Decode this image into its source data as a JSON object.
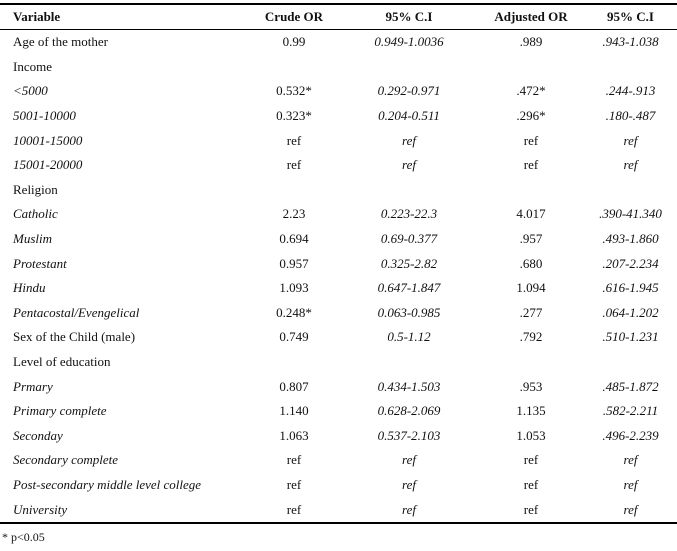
{
  "table": {
    "headers": [
      "Variable",
      "Crude OR",
      "95% C.I",
      "Adjusted OR",
      "95% C.I"
    ],
    "rows": [
      {
        "label": "Age of the mother",
        "italic": false,
        "values": [
          "0.99",
          "0.949-1.0036",
          ".989",
          ".943-1.038"
        ]
      },
      {
        "label": "Income",
        "italic": false,
        "values": [
          "",
          "",
          "",
          ""
        ]
      },
      {
        "label": "<5000",
        "italic": true,
        "values": [
          "0.532*",
          "0.292-0.971",
          ".472*",
          ".244-.913"
        ]
      },
      {
        "label": "5001-10000",
        "italic": true,
        "values": [
          "0.323*",
          "0.204-0.511",
          ".296*",
          ".180-.487"
        ]
      },
      {
        "label": "10001-15000",
        "italic": true,
        "values": [
          "ref",
          "ref",
          "ref",
          "ref"
        ]
      },
      {
        "label": "15001-20000",
        "italic": true,
        "values": [
          "ref",
          "ref",
          "ref",
          "ref"
        ]
      },
      {
        "label": "Religion",
        "italic": false,
        "values": [
          "",
          "",
          "",
          ""
        ]
      },
      {
        "label": "Catholic",
        "italic": true,
        "values": [
          "2.23",
          "0.223-22.3",
          "4.017",
          ".390-41.340"
        ]
      },
      {
        "label": "Muslim",
        "italic": true,
        "values": [
          "0.694",
          "0.69-0.377",
          ".957",
          ".493-1.860"
        ]
      },
      {
        "label": "Protestant",
        "italic": true,
        "values": [
          "0.957",
          "0.325-2.82",
          ".680",
          ".207-2.234"
        ]
      },
      {
        "label": "Hindu",
        "italic": true,
        "values": [
          "1.093",
          "0.647-1.847",
          "1.094",
          ".616-1.945"
        ]
      },
      {
        "label": "Pentacostal/Evengelical",
        "italic": true,
        "values": [
          "0.248*",
          "0.063-0.985",
          ".277",
          ".064-1.202"
        ]
      },
      {
        "label": "Sex of the Child (male)",
        "italic": false,
        "values": [
          "0.749",
          "0.5-1.12",
          ".792",
          ".510-1.231"
        ]
      },
      {
        "label": "Level of education",
        "italic": false,
        "values": [
          "",
          "",
          "",
          ""
        ]
      },
      {
        "label": "Prmary",
        "italic": true,
        "values": [
          "0.807",
          "0.434-1.503",
          ".953",
          ".485-1.872"
        ]
      },
      {
        "label": "Primary complete",
        "italic": true,
        "values": [
          "1.140",
          "0.628-2.069",
          "1.135",
          ".582-2.211"
        ]
      },
      {
        "label": "Seconday",
        "italic": true,
        "values": [
          "1.063",
          "0.537-2.103",
          "1.053",
          ".496-2.239"
        ]
      },
      {
        "label": "Secondary complete",
        "italic": true,
        "values": [
          "ref",
          "ref",
          "ref",
          "ref"
        ]
      },
      {
        "label": "Post-secondary middle level college",
        "italic": true,
        "values": [
          "ref",
          "ref",
          "ref",
          "ref"
        ]
      },
      {
        "label": "University",
        "italic": true,
        "values": [
          "ref",
          "ref",
          "ref",
          "ref"
        ]
      }
    ]
  },
  "footnote": "* p<0.05"
}
